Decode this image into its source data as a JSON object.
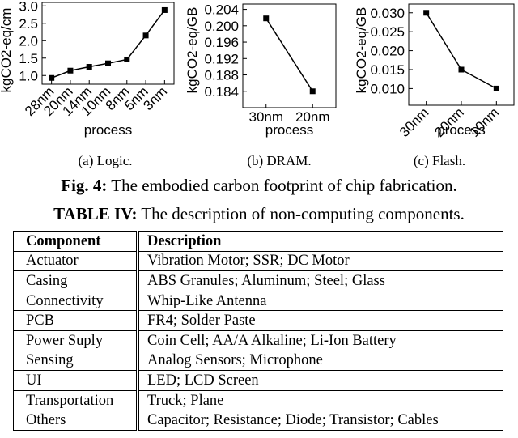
{
  "chart_data": [
    {
      "type": "line",
      "caption": "(a) Logic.",
      "y_label": "kgCO2-eq/cm",
      "x_label": "process",
      "categories": [
        "28nm",
        "20nm",
        "14nm",
        "10nm",
        "8nm",
        "5nm",
        "3nm"
      ],
      "values": [
        0.93,
        1.14,
        1.25,
        1.35,
        1.46,
        2.15,
        2.88
      ],
      "color": "#000000",
      "ylim": [
        0.75,
        3.1
      ],
      "yticks": [
        {
          "value": 1,
          "label": "1.0"
        },
        1.5,
        {
          "value": 2,
          "label": "2.0"
        },
        2.5,
        {
          "value": 3,
          "label": "3.0"
        }
      ],
      "rotate_x_labels": true
    },
    {
      "type": "line",
      "caption": "(b) DRAM.",
      "y_label": "kgCO2-eq/GB",
      "x_label": "process",
      "categories": [
        "30nm",
        "20nm"
      ],
      "values": [
        0.2018,
        0.184
      ],
      "color": "#000000",
      "ylim": [
        0.18,
        0.2053
      ],
      "yticks": [
        0.184,
        0.188,
        0.192,
        0.196,
        {
          "value": 0.2,
          "label": "0.200"
        },
        0.204
      ],
      "rotate_x_labels": false
    },
    {
      "type": "line",
      "caption": "(c) Flash.",
      "y_label": "kgCO2-eq/GB",
      "x_label": "process",
      "categories": [
        "30nm",
        "20nm",
        "10nm"
      ],
      "values": [
        0.03,
        0.015,
        0.01
      ],
      "color": "#000000",
      "ylim": [
        0.0056,
        0.0323
      ],
      "yticks": [
        {
          "value": 0.01,
          "label": "0.010"
        },
        0.015,
        {
          "value": 0.02,
          "label": "0.020"
        },
        0.025,
        {
          "value": 0.03,
          "label": "0.030"
        }
      ],
      "rotate_x_labels": true
    }
  ],
  "figure_caption": {
    "label": "Fig. 4:",
    "text": "The embodied carbon footprint of chip fabrication."
  },
  "table_caption": {
    "label": "TABLE IV:",
    "text": "The description of non-computing components."
  },
  "table": {
    "header": [
      "Component",
      "Description"
    ],
    "rows": [
      [
        "Actuator",
        "Vibration Motor; SSR; DC Motor"
      ],
      [
        "Casing",
        "ABS Granules; Aluminum; Steel; Glass"
      ],
      [
        "Connectivity",
        "Whip-Like Antenna"
      ],
      [
        "PCB",
        "FR4; Solder Paste"
      ],
      [
        "Power Suply",
        "Coin Cell; AA/A Alkaline; Li-Ion Battery"
      ],
      [
        "Sensing",
        "Analog Sensors; Microphone"
      ],
      [
        "UI",
        "LED; LCD Screen"
      ],
      [
        "Transportation",
        "Truck; Plane"
      ],
      [
        "Others",
        "Capacitor; Resistance; Diode; Transistor; Cables"
      ]
    ]
  }
}
